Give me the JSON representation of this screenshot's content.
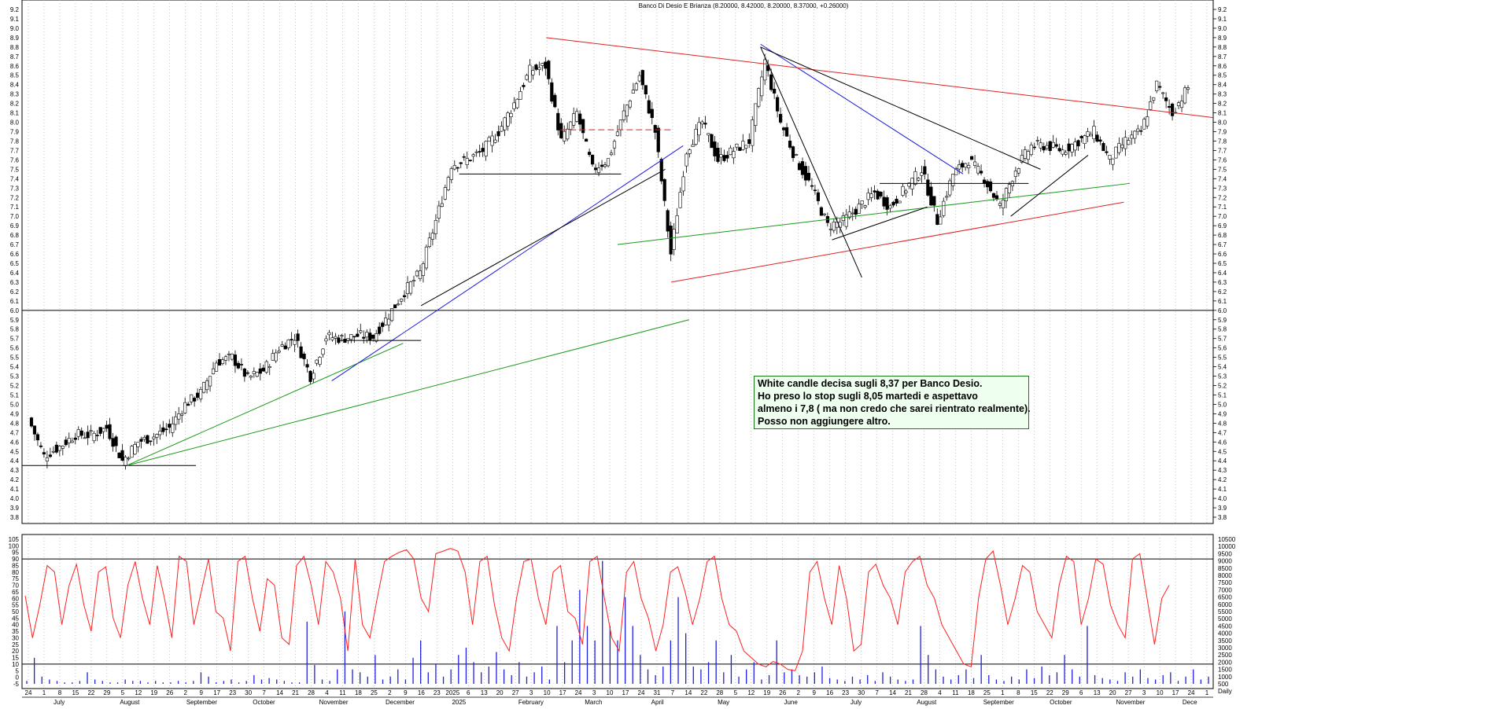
{
  "chart_data": [
    {
      "type": "candlestick",
      "title": "Banco Di Desio E Brianza (8.20000, 8.42000, 8.20000, 8.37000, +0.26000)",
      "ylim": [
        3.8,
        9.2
      ],
      "y_ticks": [
        "9.2",
        "9.1",
        "9.0",
        "8.9",
        "8.8",
        "8.7",
        "8.6",
        "8.5",
        "8.4",
        "8.3",
        "8.2",
        "8.1",
        "8.0",
        "7.9",
        "7.8",
        "7.7",
        "7.6",
        "7.5",
        "7.4",
        "7.3",
        "7.2",
        "7.1",
        "7.0",
        "6.9",
        "6.8",
        "6.7",
        "6.6",
        "6.5",
        "6.4",
        "6.3",
        "6.2",
        "6.1",
        "6.0",
        "5.9",
        "5.8",
        "5.7",
        "5.6",
        "5.5",
        "5.4",
        "5.3",
        "5.2",
        "5.1",
        "5.0",
        "4.9",
        "4.8",
        "4.7",
        "4.6",
        "4.5",
        "4.4",
        "4.3",
        "4.2",
        "4.1",
        "4.0",
        "3.9",
        "3.8"
      ],
      "grid": "vertical dotted",
      "series_anchors_close": [
        [
          "24",
          4.85
        ],
        [
          "1",
          4.45
        ],
        [
          "8",
          4.55
        ],
        [
          "15",
          4.68
        ],
        [
          "22",
          4.67
        ],
        [
          "29",
          4.75
        ],
        [
          "5",
          4.4
        ],
        [
          "12",
          4.6
        ],
        [
          "19",
          4.66
        ],
        [
          "26",
          4.75
        ],
        [
          "2",
          5.0
        ],
        [
          "9",
          5.12
        ],
        [
          "17",
          5.45
        ],
        [
          "23",
          5.5
        ],
        [
          "30",
          5.28
        ],
        [
          "7",
          5.36
        ],
        [
          "14",
          5.6
        ],
        [
          "21",
          5.72
        ],
        [
          "28",
          5.3
        ],
        [
          "4",
          5.72
        ],
        [
          "11",
          5.7
        ],
        [
          "18",
          5.73
        ],
        [
          "25",
          5.72
        ],
        [
          "2",
          5.95
        ],
        [
          "9",
          6.2
        ],
        [
          "16",
          6.4
        ],
        [
          "23",
          6.95
        ],
        [
          "2025",
          7.55
        ],
        [
          "6",
          7.6
        ],
        [
          "13",
          7.7
        ],
        [
          "20",
          7.9
        ],
        [
          "27",
          8.2
        ],
        [
          "3",
          8.55
        ],
        [
          "10",
          8.6
        ],
        [
          "17",
          7.8
        ],
        [
          "24",
          8.1
        ],
        [
          "3",
          7.5
        ],
        [
          "10",
          7.6
        ],
        [
          "17",
          8.1
        ],
        [
          "24",
          8.5
        ],
        [
          "31",
          7.9
        ],
        [
          "7",
          6.6
        ],
        [
          "14",
          7.7
        ],
        [
          "22",
          8.0
        ],
        [
          "28",
          7.6
        ],
        [
          "5",
          7.7
        ],
        [
          "12",
          7.8
        ],
        [
          "19",
          8.65
        ],
        [
          "26",
          8.0
        ],
        [
          "2",
          7.6
        ],
        [
          "9",
          7.3
        ],
        [
          "16",
          6.9
        ],
        [
          "23",
          6.95
        ],
        [
          "30",
          7.1
        ],
        [
          "7",
          7.25
        ],
        [
          "14",
          7.1
        ],
        [
          "21",
          7.3
        ],
        [
          "28",
          7.5
        ],
        [
          "4",
          6.95
        ],
        [
          "11",
          7.45
        ],
        [
          "18",
          7.6
        ],
        [
          "25",
          7.4
        ],
        [
          "1",
          7.1
        ],
        [
          "8",
          7.5
        ],
        [
          "15",
          7.75
        ],
        [
          "22",
          7.75
        ],
        [
          "29",
          7.7
        ],
        [
          "6",
          7.8
        ],
        [
          "13",
          7.9
        ],
        [
          "20",
          7.6
        ],
        [
          "27",
          7.8
        ],
        [
          "3",
          7.9
        ],
        [
          "10",
          8.4
        ],
        [
          "17",
          8.1
        ],
        [
          "24",
          8.37
        ]
      ],
      "lines": [
        {
          "name": "horizontal 6.0",
          "color": "#000000"
        },
        {
          "name": "support 4.35",
          "color": "#000000"
        },
        {
          "name": "resistance red",
          "color": "#e02020"
        },
        {
          "name": "trend green",
          "color": "#1a9a1a"
        },
        {
          "name": "trend blue",
          "color": "#1a1ae0"
        }
      ]
    },
    {
      "type": "line+bar",
      "left_ylim": [
        -5,
        105
      ],
      "left_ticks": [
        "105",
        "100",
        "95",
        "90",
        "85",
        "80",
        "75",
        "70",
        "65",
        "60",
        "55",
        "50",
        "45",
        "40",
        "35",
        "30",
        "25",
        "20",
        "15",
        "10",
        "5",
        "0",
        "-5"
      ],
      "right_ticks": [
        "10500",
        "10000",
        "9500",
        "9000",
        "8500",
        "8000",
        "7500",
        "7000",
        "6500",
        "6000",
        "5500",
        "5000",
        "4500",
        "4000",
        "3500",
        "3000",
        "2500",
        "2000",
        "1500",
        "1000",
        "500"
      ],
      "hlines": [
        90,
        10
      ],
      "oscillator": [
        62,
        30,
        55,
        85,
        80,
        40,
        70,
        86,
        55,
        35,
        80,
        84,
        45,
        30,
        70,
        88,
        60,
        40,
        85,
        60,
        30,
        92,
        88,
        40,
        65,
        90,
        50,
        45,
        20,
        88,
        92,
        60,
        35,
        75,
        70,
        30,
        25,
        85,
        92,
        70,
        40,
        88,
        80,
        60,
        20,
        90,
        40,
        30,
        60,
        88,
        92,
        95,
        97,
        90,
        60,
        50,
        94,
        96,
        98,
        96,
        80,
        40,
        88,
        92,
        55,
        30,
        20,
        60,
        88,
        90,
        60,
        40,
        80,
        85,
        50,
        45,
        25,
        88,
        92,
        60,
        30,
        20,
        80,
        88,
        60,
        45,
        20,
        40,
        80,
        84,
        65,
        40,
        60,
        88,
        92,
        60,
        40,
        35,
        20,
        15,
        10,
        8,
        12,
        10,
        6,
        5,
        20,
        80,
        88,
        60,
        40,
        85,
        60,
        20,
        25,
        80,
        86,
        70,
        60,
        40,
        80,
        88,
        92,
        70,
        60,
        40,
        30,
        20,
        10,
        8,
        60,
        90,
        96,
        70,
        40,
        60,
        85,
        80,
        50,
        40,
        30,
        70,
        92,
        88,
        40,
        60,
        90,
        86,
        55,
        40,
        30,
        90,
        94,
        60,
        25,
        60,
        70
      ],
      "volume": [
        2,
        18,
        5,
        3,
        2,
        1,
        1,
        2,
        8,
        3,
        2,
        1,
        1,
        3,
        2,
        2,
        1,
        2,
        1,
        1,
        2,
        1,
        2,
        8,
        5,
        1,
        2,
        3,
        1,
        2,
        6,
        3,
        4,
        3,
        2,
        1,
        1,
        43,
        13,
        3,
        2,
        10,
        50,
        10,
        8,
        5,
        20,
        3,
        5,
        10,
        3,
        18,
        30,
        8,
        14,
        5,
        10,
        20,
        25,
        15,
        8,
        12,
        22,
        10,
        6,
        15,
        5,
        8,
        12,
        3,
        40,
        15,
        30,
        65,
        40,
        30,
        85,
        40,
        30,
        60,
        40,
        20,
        10,
        6,
        12,
        30,
        60,
        35,
        12,
        10,
        15,
        30,
        8,
        20,
        5,
        10,
        15,
        3,
        6,
        30,
        8,
        10,
        6,
        5,
        8,
        12,
        4,
        3,
        2,
        5,
        3,
        6,
        2,
        8,
        5,
        3,
        2,
        3,
        40,
        20,
        10,
        5,
        3,
        6,
        10,
        4,
        20,
        6,
        3,
        2,
        5,
        3,
        10,
        4,
        12,
        6,
        8,
        20,
        10,
        5,
        40,
        6,
        4,
        3,
        2,
        8,
        5,
        10,
        4,
        3,
        6,
        8,
        2,
        5,
        10,
        3,
        5
      ]
    }
  ],
  "x_axis": {
    "day_labels": [
      "24",
      "1",
      "8",
      "15",
      "22",
      "29",
      "5",
      "12",
      "19",
      "26",
      "2",
      "9",
      "17",
      "23",
      "30",
      "7",
      "14",
      "21",
      "28",
      "4",
      "11",
      "18",
      "25",
      "2",
      "9",
      "16",
      "23",
      "2025",
      "6",
      "13",
      "20",
      "27",
      "3",
      "10",
      "17",
      "24",
      "3",
      "10",
      "17",
      "24",
      "31",
      "7",
      "14",
      "22",
      "28",
      "5",
      "12",
      "19",
      "26",
      "2",
      "9",
      "16",
      "23",
      "30",
      "7",
      "14",
      "21",
      "28",
      "4",
      "11",
      "18",
      "25",
      "1",
      "8",
      "15",
      "22",
      "29",
      "6",
      "13",
      "20",
      "27",
      "3",
      "10",
      "17",
      "24",
      "1"
    ],
    "month_labels": [
      "July",
      "August",
      "September",
      "October",
      "November",
      "December",
      "2025",
      "February",
      "March",
      "April",
      "May",
      "June",
      "July",
      "August",
      "September",
      "October",
      "November",
      "Dece"
    ],
    "corner_label": "Daily"
  },
  "annotation": {
    "lines": [
      "White candle decisa sugli 8,37 per Banco Desio.",
      "Ho preso lo stop sugli 8,05 martedi e aspettavo",
      "almeno i 7,8 ( ma non credo che sarei rientrato realmente).",
      "Posso non aggiungere altro."
    ],
    "bg_color": "#efffef",
    "border_color": "#1a7a1a"
  },
  "colors": {
    "candle_up_fill": "#ffffff",
    "candle_down_fill": "#000000",
    "oscillator": "#ff2020",
    "volume": "#2020e0",
    "grid": "#a0a0a0"
  }
}
